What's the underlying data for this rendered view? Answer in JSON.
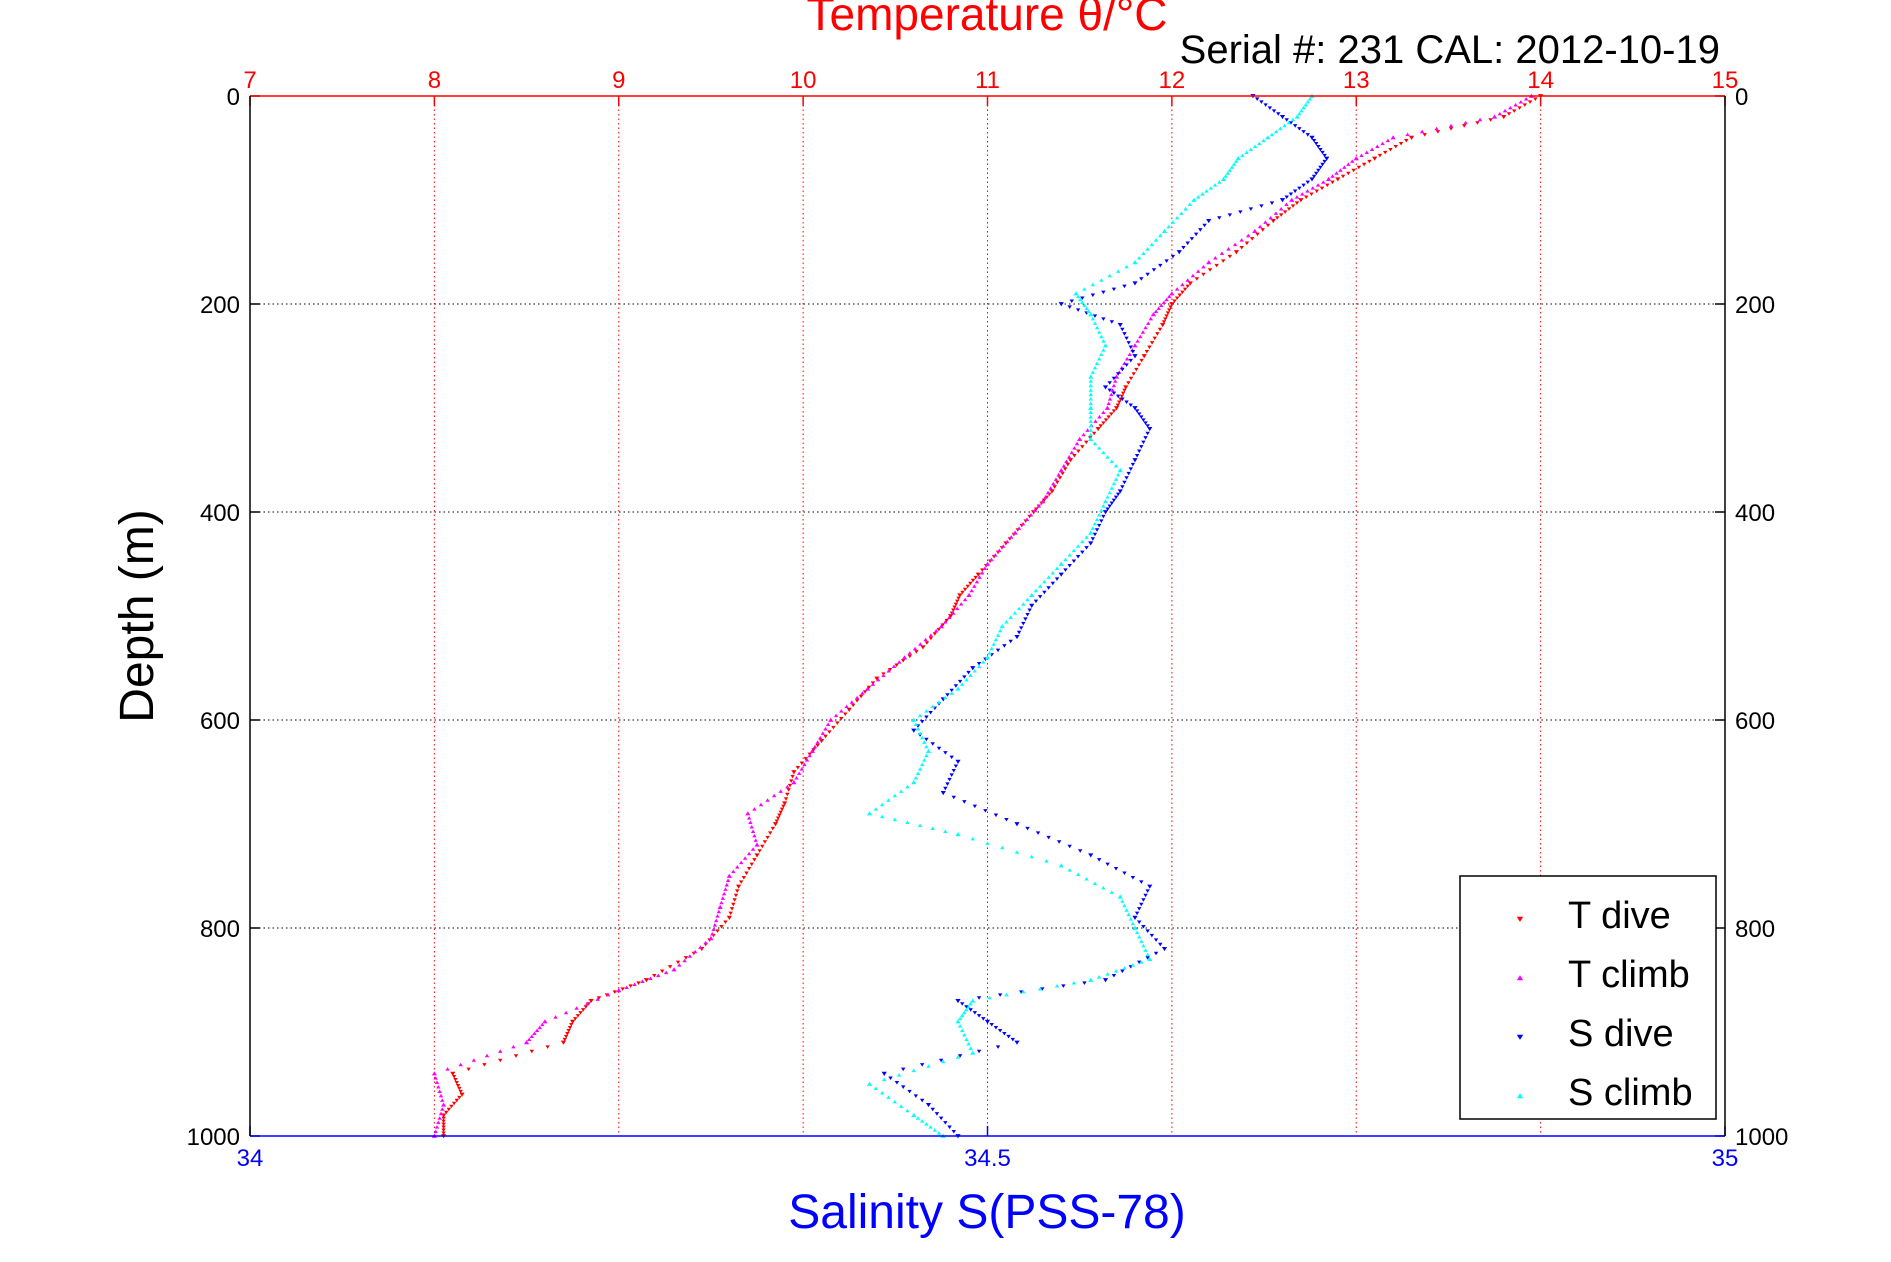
{
  "chart_data": {
    "type": "scatter",
    "title": "Temperature θ/°C",
    "subtitle": "Serial #: 231   CAL: 2012-10-19",
    "ylabel": "Depth (m)",
    "xlabel": "Salinity S(PSS-78)",
    "top_axis": {
      "label": "Temperature θ/°C",
      "range": [
        7,
        15
      ],
      "ticks": [
        "7",
        "8",
        "9",
        "10",
        "11",
        "12",
        "13",
        "14",
        "15"
      ],
      "color": "#ff0000",
      "grid": true
    },
    "bottom_axis": {
      "label": "Salinity S(PSS-78)",
      "range": [
        34,
        35
      ],
      "ticks": [
        "34",
        "34.5",
        "35"
      ],
      "color": "#0000ff"
    },
    "y_axis": {
      "range": [
        0,
        1000
      ],
      "reversed": true,
      "ticks": [
        "0",
        "200",
        "400",
        "600",
        "800",
        "1000"
      ],
      "grid": true
    },
    "legend": {
      "position": "bottom-right",
      "entries": [
        "T dive",
        "T climb",
        "S dive",
        "S climb"
      ]
    },
    "series": [
      {
        "name": "T dive",
        "axis": "temperature",
        "color": "#ff0000",
        "marker": "triangle-down",
        "points": [
          [
            0,
            14.0
          ],
          [
            20,
            13.8
          ],
          [
            40,
            13.3
          ],
          [
            60,
            13.1
          ],
          [
            80,
            12.9
          ],
          [
            100,
            12.7
          ],
          [
            120,
            12.55
          ],
          [
            150,
            12.35
          ],
          [
            180,
            12.1
          ],
          [
            200,
            12.0
          ],
          [
            220,
            11.95
          ],
          [
            250,
            11.85
          ],
          [
            280,
            11.75
          ],
          [
            300,
            11.7
          ],
          [
            320,
            11.6
          ],
          [
            350,
            11.45
          ],
          [
            380,
            11.35
          ],
          [
            400,
            11.25
          ],
          [
            430,
            11.1
          ],
          [
            460,
            10.95
          ],
          [
            480,
            10.85
          ],
          [
            500,
            10.8
          ],
          [
            530,
            10.65
          ],
          [
            560,
            10.4
          ],
          [
            590,
            10.25
          ],
          [
            620,
            10.1
          ],
          [
            650,
            9.95
          ],
          [
            680,
            9.9
          ],
          [
            700,
            9.85
          ],
          [
            730,
            9.75
          ],
          [
            760,
            9.65
          ],
          [
            790,
            9.6
          ],
          [
            820,
            9.45
          ],
          [
            850,
            9.15
          ],
          [
            870,
            8.85
          ],
          [
            890,
            8.75
          ],
          [
            910,
            8.7
          ],
          [
            940,
            8.1
          ],
          [
            960,
            8.15
          ],
          [
            980,
            8.05
          ],
          [
            1000,
            8.05
          ]
        ]
      },
      {
        "name": "T climb",
        "axis": "temperature",
        "color": "#ff00ff",
        "marker": "triangle-up",
        "points": [
          [
            0,
            13.95
          ],
          [
            20,
            13.75
          ],
          [
            40,
            13.2
          ],
          [
            60,
            13.0
          ],
          [
            80,
            12.85
          ],
          [
            100,
            12.65
          ],
          [
            130,
            12.45
          ],
          [
            160,
            12.2
          ],
          [
            190,
            12.0
          ],
          [
            210,
            11.9
          ],
          [
            240,
            11.8
          ],
          [
            270,
            11.7
          ],
          [
            300,
            11.65
          ],
          [
            330,
            11.5
          ],
          [
            360,
            11.4
          ],
          [
            390,
            11.3
          ],
          [
            420,
            11.15
          ],
          [
            450,
            11.0
          ],
          [
            480,
            10.9
          ],
          [
            510,
            10.75
          ],
          [
            540,
            10.55
          ],
          [
            570,
            10.35
          ],
          [
            600,
            10.15
          ],
          [
            630,
            10.05
          ],
          [
            660,
            9.95
          ],
          [
            690,
            9.7
          ],
          [
            720,
            9.75
          ],
          [
            750,
            9.6
          ],
          [
            780,
            9.55
          ],
          [
            810,
            9.5
          ],
          [
            840,
            9.3
          ],
          [
            860,
            9.0
          ],
          [
            890,
            8.6
          ],
          [
            910,
            8.5
          ],
          [
            940,
            8.0
          ],
          [
            970,
            8.05
          ],
          [
            1000,
            8.0
          ]
        ]
      },
      {
        "name": "S dive",
        "axis": "salinity",
        "color": "#0000ff",
        "marker": "triangle-down",
        "points": [
          [
            0,
            34.68
          ],
          [
            20,
            34.7
          ],
          [
            40,
            34.72
          ],
          [
            60,
            34.73
          ],
          [
            80,
            34.72
          ],
          [
            100,
            34.7
          ],
          [
            120,
            34.65
          ],
          [
            150,
            34.63
          ],
          [
            180,
            34.6
          ],
          [
            200,
            34.55
          ],
          [
            220,
            34.59
          ],
          [
            250,
            34.6
          ],
          [
            280,
            34.58
          ],
          [
            300,
            34.6
          ],
          [
            320,
            34.61
          ],
          [
            350,
            34.6
          ],
          [
            380,
            34.59
          ],
          [
            400,
            34.58
          ],
          [
            430,
            34.57
          ],
          [
            460,
            34.55
          ],
          [
            490,
            34.53
          ],
          [
            520,
            34.52
          ],
          [
            550,
            34.49
          ],
          [
            580,
            34.47
          ],
          [
            610,
            34.45
          ],
          [
            640,
            34.48
          ],
          [
            670,
            34.47
          ],
          [
            700,
            34.52
          ],
          [
            730,
            34.57
          ],
          [
            760,
            34.61
          ],
          [
            790,
            34.6
          ],
          [
            820,
            34.62
          ],
          [
            850,
            34.58
          ],
          [
            870,
            34.48
          ],
          [
            890,
            34.5
          ],
          [
            910,
            34.52
          ],
          [
            940,
            34.43
          ],
          [
            970,
            34.46
          ],
          [
            1000,
            34.48
          ]
        ]
      },
      {
        "name": "S climb",
        "axis": "salinity",
        "color": "#00ffff",
        "marker": "triangle-up",
        "points": [
          [
            0,
            34.72
          ],
          [
            20,
            34.71
          ],
          [
            40,
            34.69
          ],
          [
            60,
            34.67
          ],
          [
            80,
            34.66
          ],
          [
            100,
            34.64
          ],
          [
            130,
            34.62
          ],
          [
            160,
            34.6
          ],
          [
            190,
            34.56
          ],
          [
            210,
            34.57
          ],
          [
            240,
            34.58
          ],
          [
            270,
            34.57
          ],
          [
            300,
            34.57
          ],
          [
            330,
            34.57
          ],
          [
            360,
            34.59
          ],
          [
            390,
            34.58
          ],
          [
            420,
            34.57
          ],
          [
            450,
            34.55
          ],
          [
            480,
            34.53
          ],
          [
            510,
            34.51
          ],
          [
            540,
            34.5
          ],
          [
            570,
            34.48
          ],
          [
            600,
            34.45
          ],
          [
            630,
            34.46
          ],
          [
            660,
            34.45
          ],
          [
            690,
            34.42
          ],
          [
            710,
            34.48
          ],
          [
            740,
            34.55
          ],
          [
            770,
            34.59
          ],
          [
            800,
            34.6
          ],
          [
            830,
            34.61
          ],
          [
            850,
            34.57
          ],
          [
            870,
            34.49
          ],
          [
            890,
            34.48
          ],
          [
            920,
            34.49
          ],
          [
            950,
            34.42
          ],
          [
            980,
            34.45
          ],
          [
            1000,
            34.47
          ]
        ]
      }
    ]
  }
}
